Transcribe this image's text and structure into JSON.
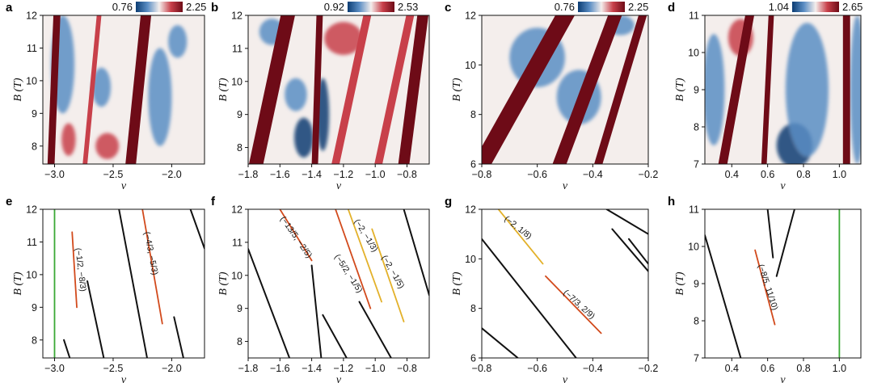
{
  "figure": {
    "colors": {
      "dark_red": "#6e0b17",
      "red": "#c8404a",
      "white": "#f4eeec",
      "blue": "#5b8ec4",
      "dark_blue": "#0b3c73",
      "green": "#3aa935",
      "orange": "#d24a1c",
      "yellow": "#e3b12a",
      "black": "#111111"
    }
  },
  "chart_data": [
    {
      "id": "a",
      "type": "heatmap",
      "label": "a",
      "xlabel": "ν",
      "ylabel": "B (T)",
      "xlim": [
        -3.1,
        -1.72
      ],
      "ylim": [
        7.45,
        12
      ],
      "xticks": [
        -3.0,
        -2.5,
        -2.0
      ],
      "xticklabels": [
        "−3.0",
        "−2.5",
        "−2.0"
      ],
      "yticks": [
        8,
        9,
        10,
        11,
        12
      ],
      "yticklabels": [
        "8",
        "9",
        "10",
        "11",
        "12"
      ],
      "colorbar": {
        "min": "0.76",
        "max": "2.25"
      },
      "bands": [
        {
          "v0": -3.03,
          "v1": -2.98,
          "w": 0.06,
          "c": "dark_red"
        },
        {
          "v0": -2.74,
          "v1": -2.62,
          "w": 0.04,
          "c": "red"
        },
        {
          "v0": -2.35,
          "v1": -2.22,
          "w": 0.09,
          "c": "dark_red"
        },
        {
          "v0": -1.92,
          "v1": -1.78,
          "w": 0.05,
          "c": "white"
        }
      ],
      "blobs": [
        {
          "x": -2.93,
          "y": 10.5,
          "rx": 0.1,
          "ry": 1.5,
          "c": "blue"
        },
        {
          "x": -2.88,
          "y": 8.2,
          "rx": 0.06,
          "ry": 0.5,
          "c": "red"
        },
        {
          "x": -2.55,
          "y": 8.0,
          "rx": 0.1,
          "ry": 0.4,
          "c": "red"
        },
        {
          "x": -2.6,
          "y": 9.8,
          "rx": 0.08,
          "ry": 0.6,
          "c": "blue"
        },
        {
          "x": -2.1,
          "y": 9.5,
          "rx": 0.1,
          "ry": 1.5,
          "c": "blue"
        },
        {
          "x": -1.95,
          "y": 11.2,
          "rx": 0.08,
          "ry": 0.5,
          "c": "blue"
        }
      ],
      "base": "white"
    },
    {
      "id": "b",
      "type": "heatmap",
      "label": "b",
      "xlabel": "ν",
      "ylabel": "B (T)",
      "xlim": [
        -1.8,
        -0.66
      ],
      "ylim": [
        7.5,
        12
      ],
      "xticks": [
        -1.8,
        -1.6,
        -1.4,
        -1.2,
        -1.0,
        -0.8
      ],
      "xticklabels": [
        "−1.8",
        "−1.6",
        "−1.4",
        "−1.2",
        "−1.0",
        "−0.8"
      ],
      "yticks": [
        8,
        9,
        10,
        11,
        12
      ],
      "yticklabels": [
        "8",
        "9",
        "10",
        "11",
        "12"
      ],
      "colorbar": {
        "min": "0.92",
        "max": "2.53"
      },
      "bands": [
        {
          "v0": -1.75,
          "v1": -1.55,
          "w": 0.09,
          "c": "dark_red"
        },
        {
          "v0": -1.38,
          "v1": -1.35,
          "w": 0.04,
          "c": "dark_red"
        },
        {
          "v0": -1.25,
          "v1": -1.05,
          "w": 0.05,
          "c": "red"
        },
        {
          "v0": -0.98,
          "v1": -0.78,
          "w": 0.05,
          "c": "red"
        },
        {
          "v0": -0.82,
          "v1": -0.7,
          "w": 0.07,
          "c": "dark_red"
        }
      ],
      "blobs": [
        {
          "x": -1.45,
          "y": 8.3,
          "rx": 0.06,
          "ry": 0.6,
          "c": "dark_blue"
        },
        {
          "x": -1.33,
          "y": 9.0,
          "rx": 0.04,
          "ry": 1.1,
          "c": "dark_blue"
        },
        {
          "x": -1.5,
          "y": 9.6,
          "rx": 0.07,
          "ry": 0.5,
          "c": "blue"
        },
        {
          "x": -1.2,
          "y": 11.3,
          "rx": 0.12,
          "ry": 0.5,
          "c": "red"
        },
        {
          "x": -1.65,
          "y": 11.5,
          "rx": 0.08,
          "ry": 0.4,
          "c": "blue"
        }
      ],
      "base": "white"
    },
    {
      "id": "c",
      "type": "heatmap",
      "label": "c",
      "xlabel": "ν",
      "ylabel": "B (T)",
      "xlim": [
        -0.8,
        -0.2
      ],
      "ylim": [
        6,
        12
      ],
      "xticks": [
        -0.8,
        -0.6,
        -0.4,
        -0.2
      ],
      "xticklabels": [
        "−0.8",
        "−0.6",
        "−0.4",
        "−0.2"
      ],
      "yticks": [
        6,
        8,
        10,
        12
      ],
      "yticklabels": [
        "6",
        "8",
        "10",
        "12"
      ],
      "colorbar": {
        "min": "0.76",
        "max": "2.25"
      },
      "bands": [
        {
          "v0": -0.8,
          "v1": -0.5,
          "w": 0.07,
          "c": "dark_red"
        },
        {
          "v0": -0.52,
          "v1": -0.32,
          "w": 0.05,
          "c": "dark_red"
        },
        {
          "v0": -0.38,
          "v1": -0.22,
          "w": 0.03,
          "c": "dark_red"
        }
      ],
      "blobs": [
        {
          "x": -0.6,
          "y": 10.3,
          "rx": 0.1,
          "ry": 1.2,
          "c": "blue"
        },
        {
          "x": -0.45,
          "y": 8.7,
          "rx": 0.08,
          "ry": 1.1,
          "c": "blue"
        },
        {
          "x": -0.3,
          "y": 11.6,
          "rx": 0.05,
          "ry": 0.4,
          "c": "blue"
        }
      ],
      "base": "white"
    },
    {
      "id": "d",
      "type": "heatmap",
      "label": "d",
      "xlabel": "ν",
      "ylabel": "B (T)",
      "xlim": [
        0.25,
        1.12
      ],
      "ylim": [
        7,
        11
      ],
      "xticks": [
        0.4,
        0.6,
        0.8,
        1.0
      ],
      "xticklabels": [
        "0.4",
        "0.6",
        "0.8",
        "1.0"
      ],
      "yticks": [
        7,
        8,
        9,
        10,
        11
      ],
      "yticklabels": [
        "7",
        "8",
        "9",
        "10",
        "11"
      ],
      "colorbar": {
        "min": "1.04",
        "max": "2.65"
      },
      "bands": [
        {
          "v0": 0.35,
          "v1": 0.5,
          "w": 0.05,
          "c": "dark_red"
        },
        {
          "v0": 0.58,
          "v1": 0.62,
          "w": 0.03,
          "c": "dark_red"
        },
        {
          "v0": 1.04,
          "v1": 1.04,
          "w": 0.04,
          "c": "dark_red"
        }
      ],
      "blobs": [
        {
          "x": 0.75,
          "y": 7.5,
          "rx": 0.1,
          "ry": 0.6,
          "c": "dark_blue"
        },
        {
          "x": 0.82,
          "y": 9.0,
          "rx": 0.12,
          "ry": 1.8,
          "c": "blue"
        },
        {
          "x": 0.3,
          "y": 9.0,
          "rx": 0.06,
          "ry": 1.5,
          "c": "blue"
        },
        {
          "x": 0.45,
          "y": 10.4,
          "rx": 0.07,
          "ry": 0.5,
          "c": "red"
        },
        {
          "x": 1.1,
          "y": 9.0,
          "rx": 0.04,
          "ry": 2.0,
          "c": "blue"
        }
      ],
      "base": "white"
    },
    {
      "id": "e",
      "type": "line",
      "label": "e",
      "xlabel": "ν",
      "ylabel": "B (T)",
      "xlim": [
        -3.1,
        -1.72
      ],
      "ylim": [
        7.45,
        12
      ],
      "xticks": [
        -3.0,
        -2.5,
        -2.0
      ],
      "xticklabels": [
        "−3.0",
        "−2.5",
        "−2.0"
      ],
      "yticks": [
        8,
        9,
        10,
        11,
        12
      ],
      "yticklabels": [
        "8",
        "9",
        "10",
        "11",
        "12"
      ],
      "lines": [
        {
          "x": [
            -3.0,
            -3.0
          ],
          "y": [
            7.45,
            12
          ],
          "c": "green"
        },
        {
          "x": [
            -2.85,
            -2.81
          ],
          "y": [
            11.3,
            9.0
          ],
          "c": "orange"
        },
        {
          "x": [
            -2.25,
            -2.08
          ],
          "y": [
            12.0,
            8.5
          ],
          "c": "orange"
        },
        {
          "x": [
            -2.72,
            -2.58
          ],
          "y": [
            9.8,
            7.45
          ],
          "c": "black"
        },
        {
          "x": [
            -2.92,
            -2.87
          ],
          "y": [
            8.0,
            7.45
          ],
          "c": "black"
        },
        {
          "x": [
            -2.45,
            -2.21
          ],
          "y": [
            12.0,
            7.45
          ],
          "c": "black"
        },
        {
          "x": [
            -1.98,
            -1.9
          ],
          "y": [
            8.7,
            7.45
          ],
          "c": "black"
        },
        {
          "x": [
            -1.84,
            -1.72
          ],
          "y": [
            12.0,
            10.8
          ],
          "c": "black"
        }
      ],
      "annotations": [
        {
          "text": "(−1/2, −8/3)",
          "x": -2.78,
          "y": 10.15,
          "angle": 83
        },
        {
          "text": "(−4/3, −5/3)",
          "x": -2.18,
          "y": 10.65,
          "angle": 79
        }
      ]
    },
    {
      "id": "f",
      "type": "line",
      "label": "f",
      "xlabel": "ν",
      "ylabel": "B (T)",
      "xlim": [
        -1.8,
        -0.66
      ],
      "ylim": [
        7.5,
        12
      ],
      "xticks": [
        -1.8,
        -1.6,
        -1.4,
        -1.2,
        -1.0,
        -0.8
      ],
      "xticklabels": [
        "−1.8",
        "−1.6",
        "−1.4",
        "−1.2",
        "−1.0",
        "−0.8"
      ],
      "yticks": [
        8,
        9,
        10,
        11,
        12
      ],
      "yticklabels": [
        "8",
        "9",
        "10",
        "11",
        "12"
      ],
      "lines": [
        {
          "x": [
            -1.6,
            -1.4
          ],
          "y": [
            12.0,
            10.45
          ],
          "c": "orange"
        },
        {
          "x": [
            -1.25,
            -1.03
          ],
          "y": [
            12.0,
            9.0
          ],
          "c": "orange"
        },
        {
          "x": [
            -1.17,
            -0.96
          ],
          "y": [
            12.0,
            9.2
          ],
          "c": "yellow"
        },
        {
          "x": [
            -1.02,
            -0.82
          ],
          "y": [
            11.4,
            8.6
          ],
          "c": "yellow"
        },
        {
          "x": [
            -1.8,
            -1.54
          ],
          "y": [
            10.8,
            7.5
          ],
          "c": "black"
        },
        {
          "x": [
            -1.4,
            -1.34
          ],
          "y": [
            10.3,
            7.5
          ],
          "c": "black"
        },
        {
          "x": [
            -1.33,
            -1.18
          ],
          "y": [
            8.8,
            7.5
          ],
          "c": "black"
        },
        {
          "x": [
            -1.1,
            -0.9
          ],
          "y": [
            9.2,
            7.5
          ],
          "c": "black"
        },
        {
          "x": [
            -0.82,
            -0.66
          ],
          "y": [
            12.0,
            9.4
          ],
          "c": "black"
        }
      ],
      "annotations": [
        {
          "text": "(−13/5, −2/5)",
          "x": -1.5,
          "y": 11.15,
          "angle": 55
        },
        {
          "text": "(−5/2, −1/5)",
          "x": -1.17,
          "y": 10.05,
          "angle": 57
        },
        {
          "text": "(−2, −1/3)",
          "x": -1.06,
          "y": 11.2,
          "angle": 58
        },
        {
          "text": "(−2, −1/5)",
          "x": -0.89,
          "y": 10.1,
          "angle": 60
        }
      ]
    },
    {
      "id": "g",
      "type": "line",
      "label": "g",
      "xlabel": "ν",
      "ylabel": "B (T)",
      "xlim": [
        -0.8,
        -0.2
      ],
      "ylim": [
        6,
        12
      ],
      "xticks": [
        -0.8,
        -0.6,
        -0.4,
        -0.2
      ],
      "xticklabels": [
        "−0.8",
        "−0.6",
        "−0.4",
        "−0.2"
      ],
      "yticks": [
        6,
        8,
        10,
        12
      ],
      "yticklabels": [
        "6",
        "8",
        "10",
        "12"
      ],
      "lines": [
        {
          "x": [
            -0.74,
            -0.58
          ],
          "y": [
            12.0,
            9.8
          ],
          "c": "yellow"
        },
        {
          "x": [
            -0.57,
            -0.37
          ],
          "y": [
            9.3,
            7.0
          ],
          "c": "orange"
        },
        {
          "x": [
            -0.8,
            -0.46
          ],
          "y": [
            10.8,
            6.0
          ],
          "c": "black"
        },
        {
          "x": [
            -0.8,
            -0.67
          ],
          "y": [
            7.2,
            6.0
          ],
          "c": "black"
        },
        {
          "x": [
            -0.35,
            -0.2
          ],
          "y": [
            12.0,
            11.0
          ],
          "c": "black"
        },
        {
          "x": [
            -0.33,
            -0.2
          ],
          "y": [
            11.2,
            9.5
          ],
          "c": "black"
        },
        {
          "x": [
            -0.27,
            -0.2
          ],
          "y": [
            10.8,
            9.8
          ],
          "c": "black"
        }
      ],
      "annotations": [
        {
          "text": "(−2, 1/8)",
          "x": -0.67,
          "y": 11.25,
          "angle": 38
        },
        {
          "text": "(−7/3, 2/9)",
          "x": -0.45,
          "y": 8.15,
          "angle": 42
        }
      ]
    },
    {
      "id": "h",
      "type": "line",
      "label": "h",
      "xlabel": "ν",
      "ylabel": "B (T)",
      "xlim": [
        0.25,
        1.12
      ],
      "ylim": [
        7,
        11
      ],
      "xticks": [
        0.4,
        0.6,
        0.8,
        1.0
      ],
      "xticklabels": [
        "0.4",
        "0.6",
        "0.8",
        "1.0"
      ],
      "yticks": [
        7,
        8,
        9,
        10,
        11
      ],
      "yticklabels": [
        "7",
        "8",
        "9",
        "10",
        "11"
      ],
      "lines": [
        {
          "x": [
            1.0,
            1.0
          ],
          "y": [
            7,
            11
          ],
          "c": "green"
        },
        {
          "x": [
            0.53,
            0.64
          ],
          "y": [
            9.9,
            7.9
          ],
          "c": "orange"
        },
        {
          "x": [
            0.25,
            0.45
          ],
          "y": [
            10.3,
            7.0
          ],
          "c": "black"
        },
        {
          "x": [
            0.6,
            0.63
          ],
          "y": [
            11.0,
            9.7
          ],
          "c": "black"
        },
        {
          "x": [
            0.65,
            0.75
          ],
          "y": [
            9.2,
            11.0
          ],
          "c": "black"
        }
      ],
      "annotations": [
        {
          "text": "(−8/5, 11/10)",
          "x": 0.6,
          "y": 8.9,
          "angle": 72
        }
      ]
    }
  ]
}
